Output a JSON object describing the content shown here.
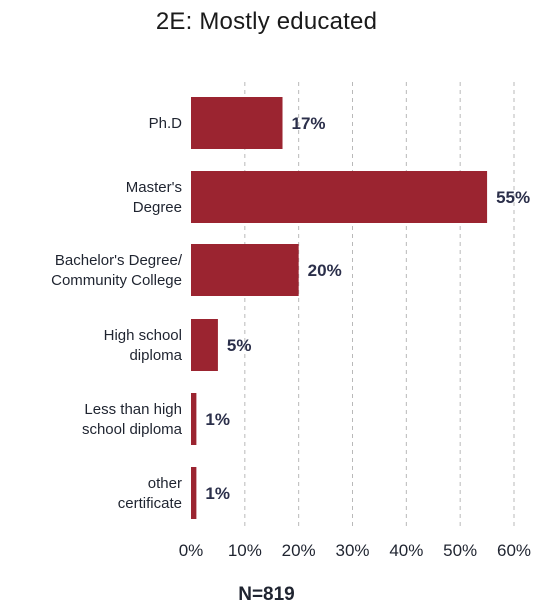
{
  "chart_data": {
    "type": "bar",
    "orientation": "horizontal",
    "title": "2E: Mostly educated",
    "categories": [
      [
        "Ph.D"
      ],
      [
        "Master's",
        "Degree"
      ],
      [
        "Bachelor's Degree/",
        "Community College"
      ],
      [
        "High school",
        "diploma"
      ],
      [
        "Less than high",
        "school diploma"
      ],
      [
        "other",
        "certificate"
      ]
    ],
    "values": [
      17,
      55,
      20,
      5,
      1,
      1
    ],
    "value_labels": [
      "17%",
      "55%",
      "20%",
      "5%",
      "1%",
      "1%"
    ],
    "xlim": [
      0,
      60
    ],
    "x_ticks": [
      "0%",
      "10%",
      "20%",
      "30%",
      "40%",
      "50%",
      "60%"
    ],
    "grid": "vertical dashed",
    "legend": "none",
    "bar_color": "#9b2430",
    "label_color": "#2b2f4a",
    "footnote": "N=819"
  }
}
